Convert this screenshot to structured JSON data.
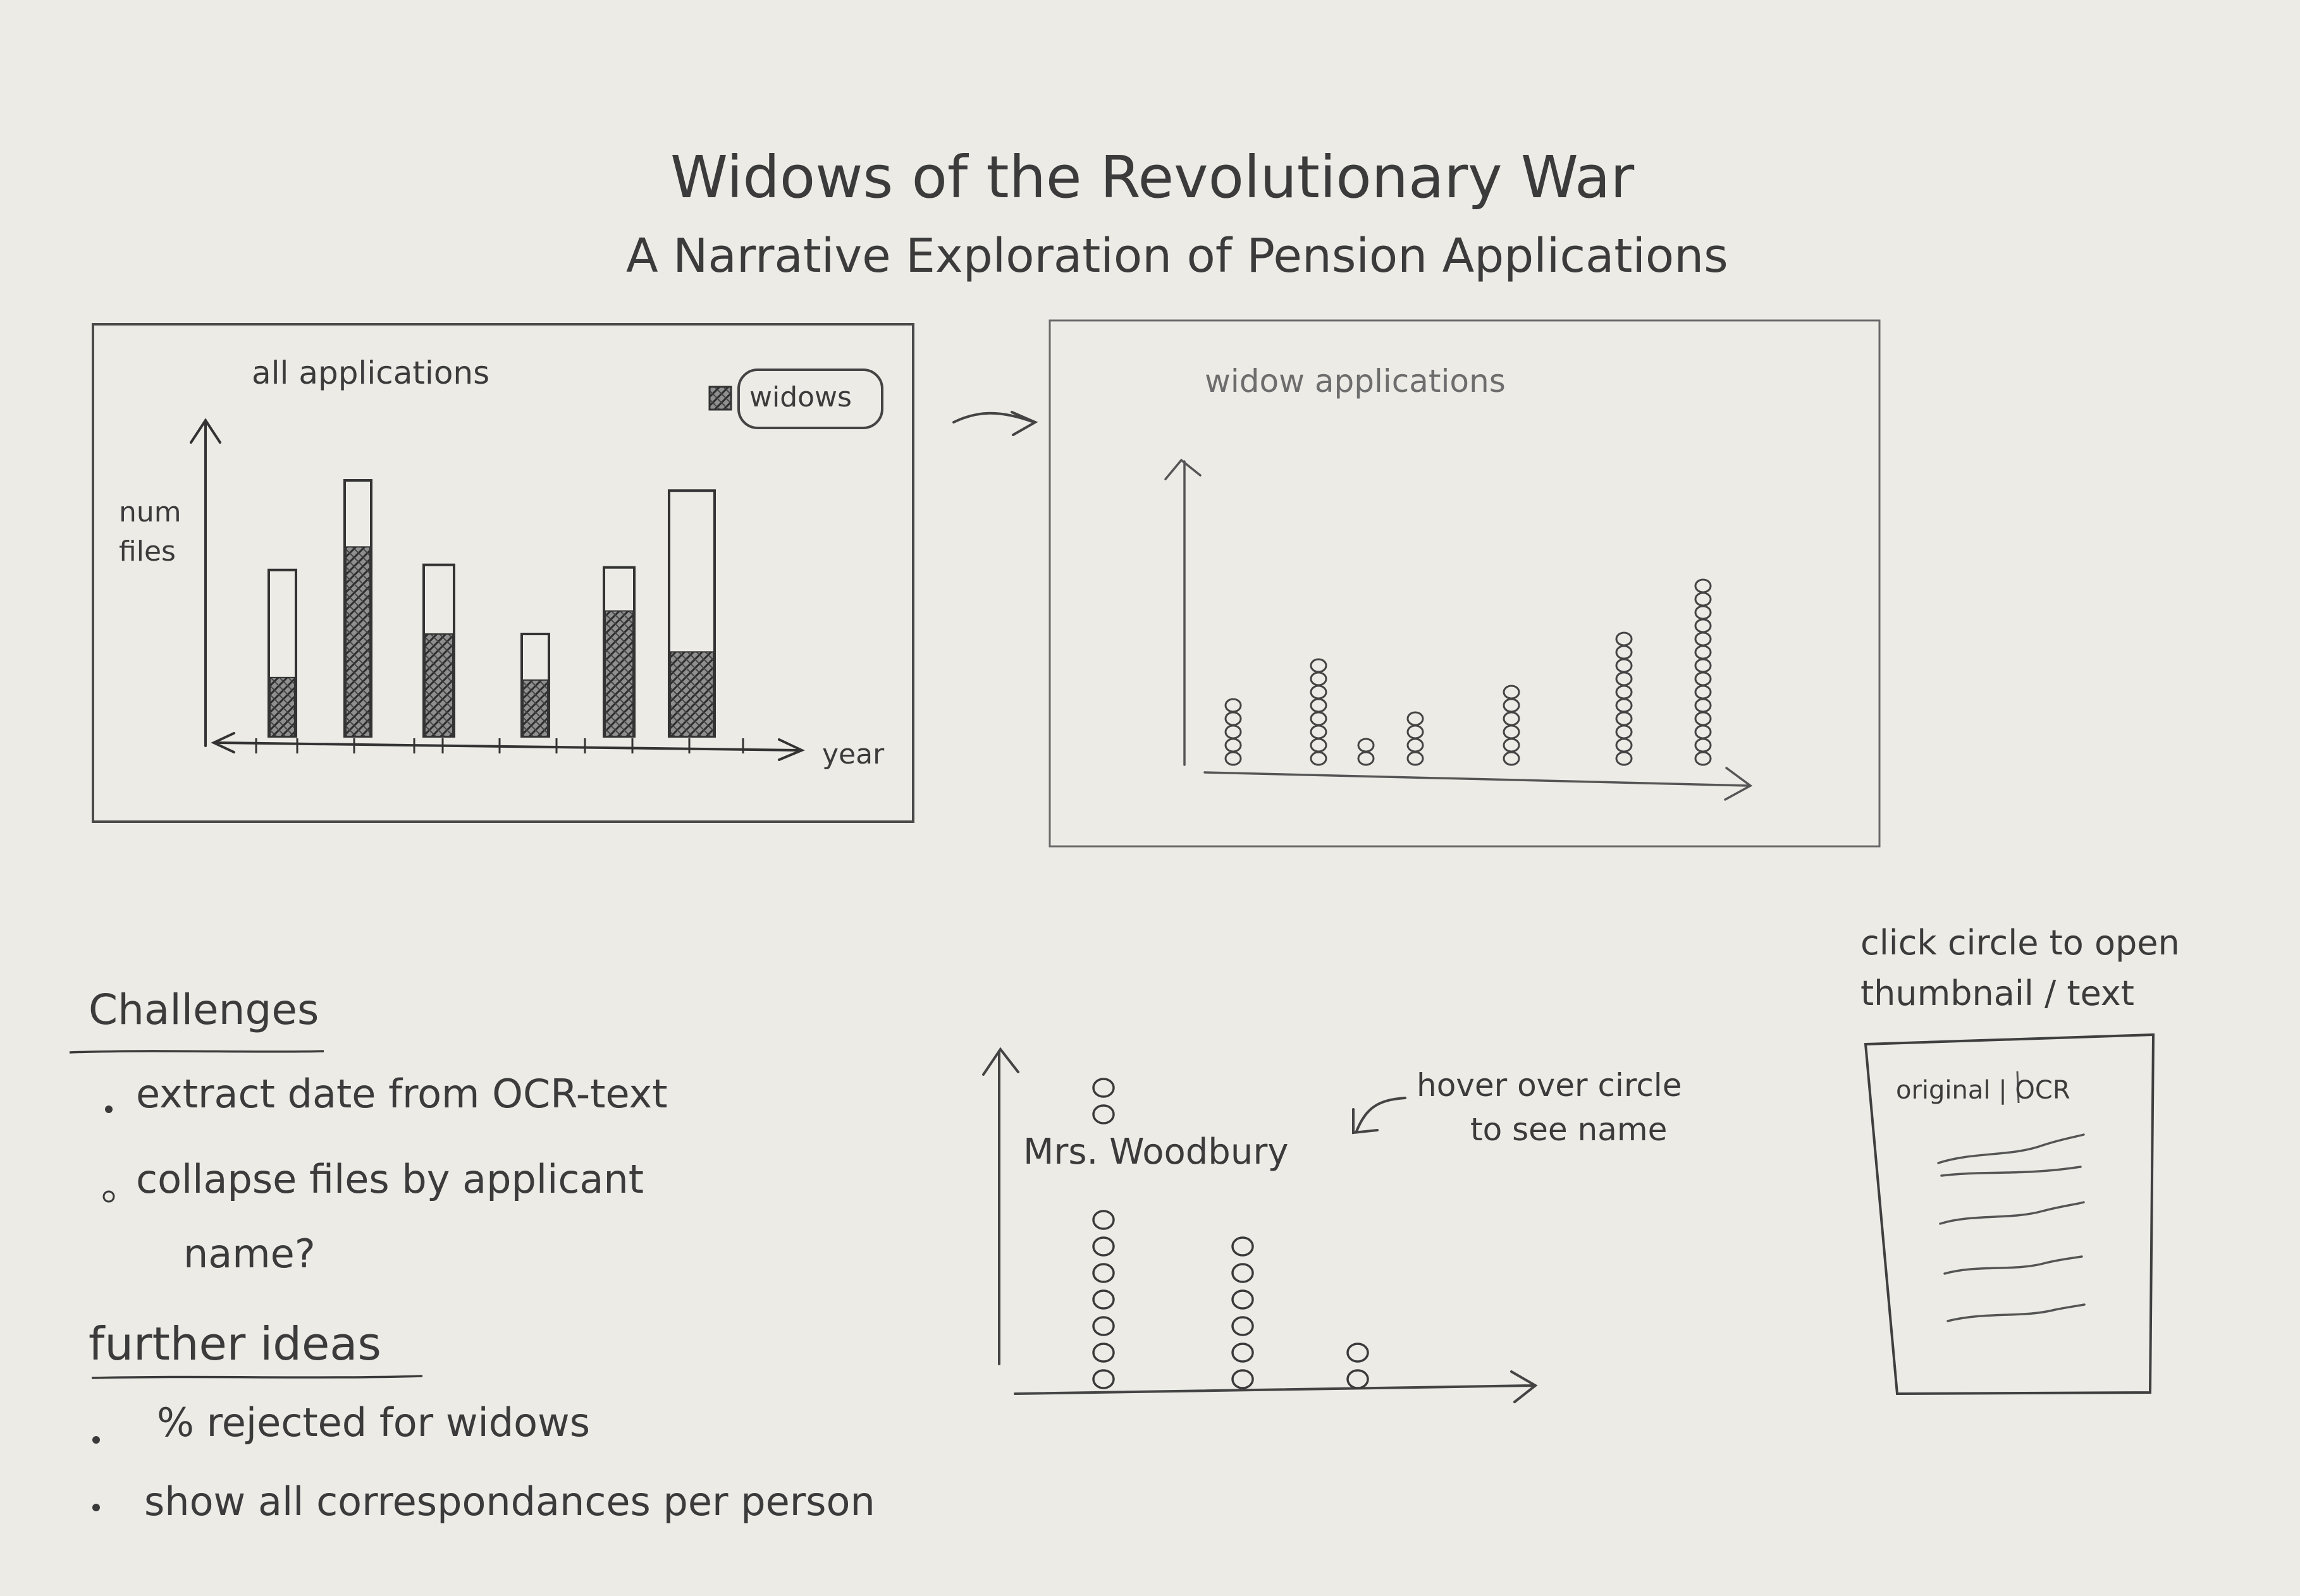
{
  "title": "Widows of the Revolutionary War",
  "subtitle": "A Narrative Exploration of Pension Applications",
  "chart_data": [
    {
      "type": "bar",
      "title": "all applications",
      "ylabel": "num files",
      "xlabel": "year",
      "legend": {
        "label": "widows",
        "placement": "top-right"
      },
      "series": [
        {
          "values": [
            0.65,
            1.0,
            0.67,
            0.4,
            0.66,
            0.96
          ]
        },
        {
          "name": "widows",
          "values": [
            0.23,
            0.74,
            0.4,
            0.22,
            0.49,
            0.33
          ]
        }
      ]
    },
    {
      "type": "scatter",
      "title": "widow applications",
      "columns": [
        {
          "count": 5
        },
        {
          "count": 8
        },
        {
          "count": 2
        },
        {
          "count": 4
        },
        {
          "count": 6
        },
        {
          "count": 10
        },
        {
          "count": 14
        }
      ]
    },
    {
      "type": "scatter",
      "columns": [
        {
          "count": 9
        },
        {
          "count": 6
        },
        {
          "count": 2
        }
      ],
      "tooltip": "Mrs. Woodbury"
    }
  ],
  "hover_note": {
    "line1": "hover over circle",
    "line2": "to see name"
  },
  "click_note": {
    "line1": "click circle to open",
    "line2": "thumbnail / text"
  },
  "thumbnail_label": "original | OCR",
  "challenges": {
    "heading": "Challenges",
    "items": [
      "extract date from OCR-text",
      "collapse files by applicant",
      "name?"
    ]
  },
  "further_ideas": {
    "heading": "further ideas",
    "items": [
      "% rejected for widows",
      "show all correspondances per person"
    ]
  }
}
